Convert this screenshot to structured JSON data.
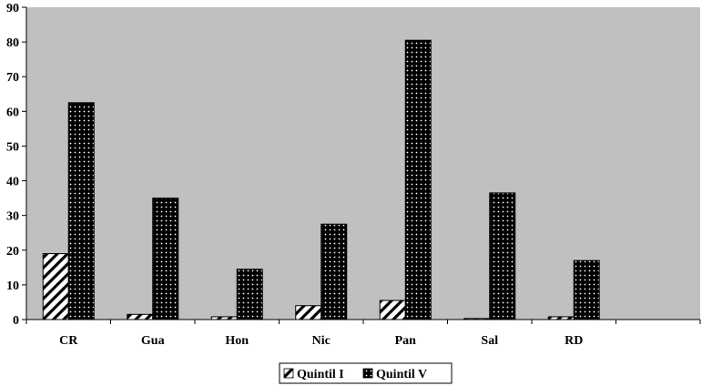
{
  "chart_data": {
    "type": "bar",
    "categories": [
      "CR",
      "Gua",
      "Hon",
      "Nic",
      "Pan",
      "Sal",
      "RD",
      ""
    ],
    "series": [
      {
        "name": "Quintil I",
        "values": [
          19,
          1.5,
          0.8,
          4,
          5.5,
          0.3,
          0.8,
          null
        ]
      },
      {
        "name": "Quintil V",
        "values": [
          62.5,
          35,
          14.5,
          27.5,
          80.5,
          36.5,
          17,
          null
        ]
      }
    ],
    "ylim": [
      0,
      90
    ],
    "yticks": [
      0,
      10,
      20,
      30,
      40,
      50,
      60,
      70,
      80,
      90
    ],
    "grid": false,
    "plot_background": "#c0c0c0",
    "legend_position": "bottom-center"
  }
}
